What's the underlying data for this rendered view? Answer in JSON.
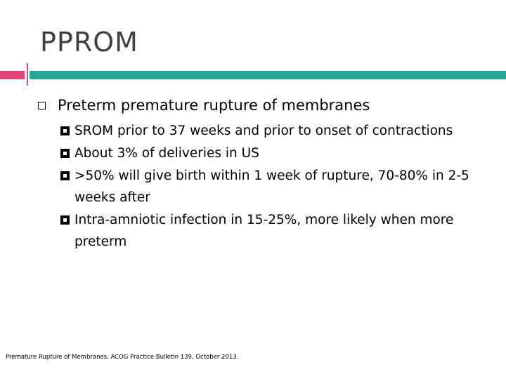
{
  "slide": {
    "title": "PPROM",
    "main_point": "Preterm premature rupture of membranes",
    "sub_points": [
      "SROM prior to 37 weeks and prior to onset of contractions",
      "About 3% of deliveries in US",
      ">50% will give birth within 1 week of rupture, 70-80% in 2-5 weeks after",
      "Intra-amniotic infection in 15-25%, more likely when more preterm"
    ],
    "citation": "Premature Rupture of Membranes. ACOG Practice Bulletin 139, October 2013."
  },
  "colors": {
    "title_text": "#404040",
    "accent_pink": "#e0457b",
    "accent_teal": "#2ba596"
  },
  "icons": {
    "main_bullet": "hollow-square-bullet-icon",
    "sub_bullet": "framed-square-bullet-icon"
  }
}
